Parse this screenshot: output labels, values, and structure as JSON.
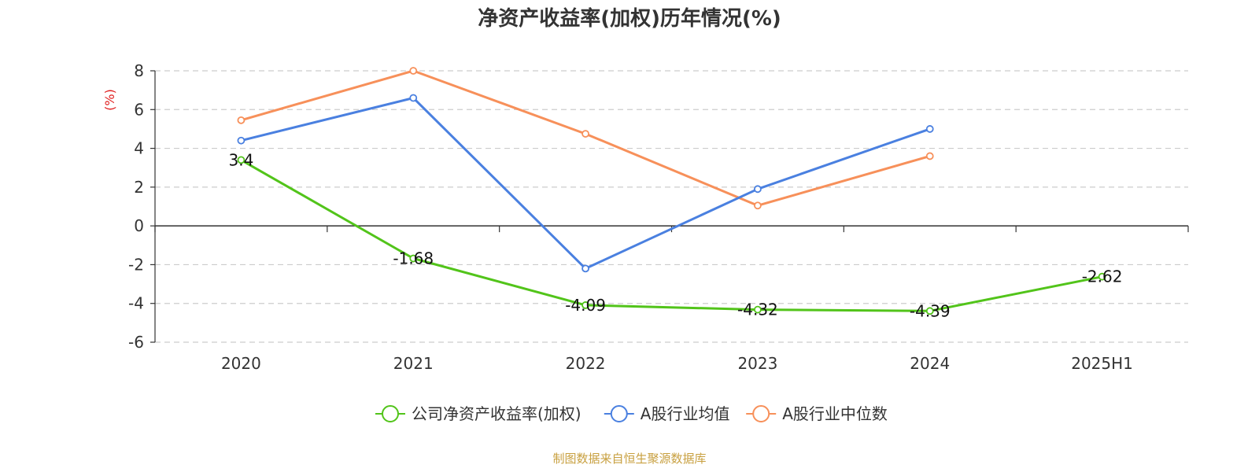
{
  "chart_data": {
    "type": "line",
    "title": "净资产收益率(加权)历年情况(%)",
    "ylabel": "(%)",
    "xlabel": "",
    "categories": [
      "2020",
      "2021",
      "2022",
      "2023",
      "2024",
      "2025H1"
    ],
    "ylim": [
      -6,
      8
    ],
    "yticks": [
      8,
      6,
      4,
      2,
      0,
      -2,
      -4,
      -6
    ],
    "grid": true,
    "legend_position": "bottom",
    "series": [
      {
        "name": "公司净资产收益率(加权)",
        "color": "#52c41a",
        "values": [
          3.4,
          -1.68,
          -4.09,
          -4.32,
          -4.39,
          -2.62
        ],
        "labels": [
          "3.4",
          "-1.68",
          "-4.09",
          "-4.32",
          "-4.39",
          "-2.62"
        ]
      },
      {
        "name": "A股行业均值",
        "color": "#4a80e0",
        "values": [
          4.4,
          6.6,
          -2.2,
          1.9,
          5.0,
          null
        ]
      },
      {
        "name": "A股行业中位数",
        "color": "#f7905a",
        "values": [
          5.45,
          8.0,
          4.75,
          1.05,
          3.6,
          null
        ]
      }
    ],
    "source": "制图数据来自恒生聚源数据库"
  }
}
